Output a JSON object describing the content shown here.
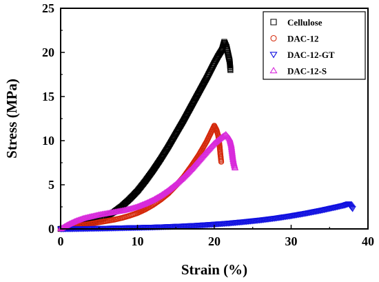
{
  "chart_data": {
    "type": "scatter",
    "xlabel": "Strain (%)",
    "ylabel": "Stress (MPa)",
    "xlim": [
      0,
      40
    ],
    "ylim": [
      0,
      25
    ],
    "xticks": [
      0,
      10,
      20,
      30,
      40
    ],
    "yticks": [
      0,
      5,
      10,
      15,
      20,
      25
    ],
    "legend_position": "top-right",
    "series": [
      {
        "name": "Cellulose",
        "marker": "square",
        "color": "#000000",
        "x": [
          0.0,
          1.0,
          2.0,
          3.0,
          4.0,
          5.0,
          6.0,
          7.0,
          8.0,
          9.0,
          10.0,
          11.0,
          12.0,
          13.0,
          14.0,
          15.0,
          16.0,
          17.0,
          18.0,
          19.0,
          20.0,
          20.5,
          21.0,
          21.3,
          21.6,
          21.8,
          22.0,
          22.1
        ],
        "y": [
          0.0,
          0.15,
          0.3,
          0.5,
          0.75,
          1.05,
          1.45,
          1.95,
          2.6,
          3.4,
          4.3,
          5.4,
          6.6,
          7.9,
          9.3,
          10.8,
          12.3,
          13.9,
          15.5,
          17.1,
          18.8,
          19.6,
          20.3,
          21.2,
          20.6,
          19.8,
          19.0,
          18.0
        ]
      },
      {
        "name": "DAC-12",
        "marker": "circle",
        "color": "#d4280a",
        "x": [
          0.0,
          1.0,
          2.0,
          3.0,
          4.0,
          5.0,
          6.0,
          7.0,
          8.0,
          9.0,
          10.0,
          11.0,
          12.0,
          13.0,
          14.0,
          15.0,
          16.0,
          17.0,
          18.0,
          19.0,
          19.5,
          20.0,
          20.3,
          20.5,
          20.6,
          20.7,
          20.8,
          20.9
        ],
        "y": [
          0.0,
          0.15,
          0.3,
          0.45,
          0.6,
          0.75,
          0.9,
          1.05,
          1.25,
          1.5,
          1.8,
          2.2,
          2.7,
          3.3,
          4.0,
          4.9,
          5.9,
          7.1,
          8.4,
          9.9,
          10.8,
          11.7,
          11.2,
          10.6,
          10.0,
          9.3,
          8.4,
          7.6
        ]
      },
      {
        "name": "DAC-12-GT",
        "marker": "triangle-down",
        "color": "#1010e0",
        "x": [
          0.0,
          2.0,
          4.0,
          6.0,
          8.0,
          10.0,
          12.0,
          14.0,
          16.0,
          18.0,
          20.0,
          22.0,
          24.0,
          26.0,
          28.0,
          30.0,
          32.0,
          34.0,
          36.0,
          37.0,
          37.5,
          38.0
        ],
        "y": [
          0.0,
          0.02,
          0.05,
          0.08,
          0.12,
          0.16,
          0.2,
          0.26,
          0.33,
          0.42,
          0.53,
          0.66,
          0.82,
          1.0,
          1.22,
          1.48,
          1.78,
          2.12,
          2.5,
          2.7,
          2.85,
          2.3
        ]
      },
      {
        "name": "DAC-12-S",
        "marker": "triangle-up",
        "color": "#d82adb",
        "x": [
          0.0,
          0.5,
          1.0,
          2.0,
          3.0,
          4.0,
          5.0,
          6.0,
          7.0,
          8.0,
          9.0,
          10.0,
          11.0,
          12.0,
          13.0,
          14.0,
          15.0,
          16.0,
          17.0,
          18.0,
          19.0,
          20.0,
          21.0,
          21.5,
          22.0,
          22.2,
          22.3,
          22.4,
          22.5,
          22.7
        ],
        "y": [
          0.0,
          0.25,
          0.5,
          0.9,
          1.2,
          1.4,
          1.6,
          1.75,
          1.9,
          2.05,
          2.25,
          2.5,
          2.85,
          3.25,
          3.75,
          4.35,
          5.05,
          5.85,
          6.75,
          7.75,
          8.75,
          9.7,
          10.4,
          10.7,
          10.2,
          9.5,
          8.8,
          8.1,
          7.6,
          6.9
        ]
      }
    ]
  }
}
